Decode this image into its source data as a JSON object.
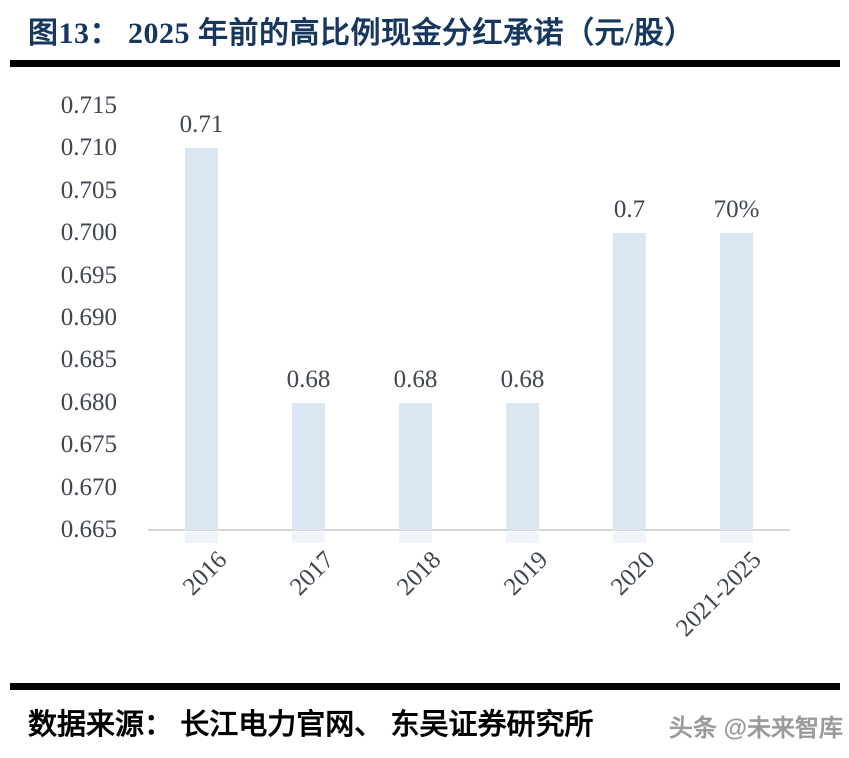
{
  "header": {
    "title": "图13：  2025 年前的高比例现金分红承诺（元/股）"
  },
  "footer": {
    "source": "数据来源：  长江电力官网、  东吴证券研究所",
    "watermark": "头条 @未来智库"
  },
  "colors": {
    "title": "#17375e",
    "bar": "#dbe6f3",
    "axis_line": "#d6d6d6",
    "tick_label": "#3f4650",
    "divider": "#000000",
    "watermark": "#9a9a9a"
  },
  "chart_data": {
    "type": "bar",
    "title": "2025 年前的高比例现金分红承诺（元/股）",
    "categories": [
      "2016",
      "2017",
      "2018",
      "2019",
      "2020",
      "2021-2025"
    ],
    "values": [
      0.71,
      0.68,
      0.68,
      0.68,
      0.7,
      0.7
    ],
    "data_labels": [
      "0.71",
      "0.68",
      "0.68",
      "0.68",
      "0.7",
      "70%"
    ],
    "xlabel": "",
    "ylabel": "",
    "ylim": [
      0.665,
      0.715
    ],
    "ytick_step": 0.005,
    "ytick_decimals": 3,
    "grid": false,
    "legend": false,
    "bar_color": "#dbe6f3",
    "x_label_rotation_deg": -45
  }
}
